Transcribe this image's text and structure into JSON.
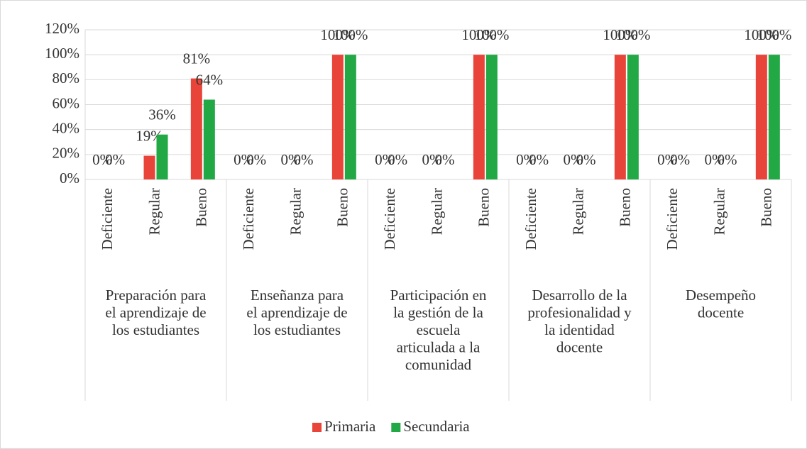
{
  "chart_data": {
    "type": "bar",
    "categories": [
      "Deficiente",
      "Regular",
      "Bueno",
      "Deficiente",
      "Regular",
      "Bueno",
      "Deficiente",
      "Regular",
      "Bueno",
      "Deficiente",
      "Regular",
      "Bueno",
      "Deficiente",
      "Regular",
      "Bueno"
    ],
    "groups": [
      [
        "Preparación para",
        "el aprendizaje de",
        "los estudiantes"
      ],
      [
        "Enseñanza para",
        "el aprendizaje de",
        "los estudiantes"
      ],
      [
        "Participación en",
        "la gestión de la",
        "escuela",
        "articulada a la",
        "comunidad"
      ],
      [
        "Desarrollo de la",
        "profesionalidad y",
        "la identidad",
        "docente"
      ],
      [
        "Desempeño",
        "docente"
      ]
    ],
    "series": [
      {
        "name": "Primaria",
        "color": "#e8443a",
        "values": [
          0,
          19,
          81,
          0,
          0,
          100,
          0,
          0,
          100,
          0,
          0,
          100,
          0,
          0,
          100
        ],
        "value_labels": [
          "0%",
          "19%",
          "81%",
          "0%",
          "0%",
          "100%",
          "0%",
          "0%",
          "100%",
          "0%",
          "0%",
          "100%",
          "0%",
          "0%",
          "100%"
        ]
      },
      {
        "name": "Secundaria",
        "color": "#22a845",
        "values": [
          0,
          36,
          64,
          0,
          0,
          100,
          0,
          0,
          100,
          0,
          0,
          100,
          0,
          0,
          100
        ],
        "value_labels": [
          "0%",
          "36%",
          "64%",
          "0%",
          "0%",
          "100%",
          "0%",
          "0%",
          "100%",
          "0%",
          "0%",
          "100%",
          "0%",
          "0%",
          "100%"
        ]
      }
    ],
    "ylim": [
      0,
      120
    ],
    "yticks": [
      {
        "value": 0,
        "label": "0%"
      },
      {
        "value": 20,
        "label": "20%"
      },
      {
        "value": 40,
        "label": "40%"
      },
      {
        "value": 60,
        "label": "60%"
      },
      {
        "value": 80,
        "label": "80%"
      },
      {
        "value": 100,
        "label": "100%"
      },
      {
        "value": 120,
        "label": "120%"
      }
    ],
    "grid": true,
    "legend": "bottom"
  }
}
